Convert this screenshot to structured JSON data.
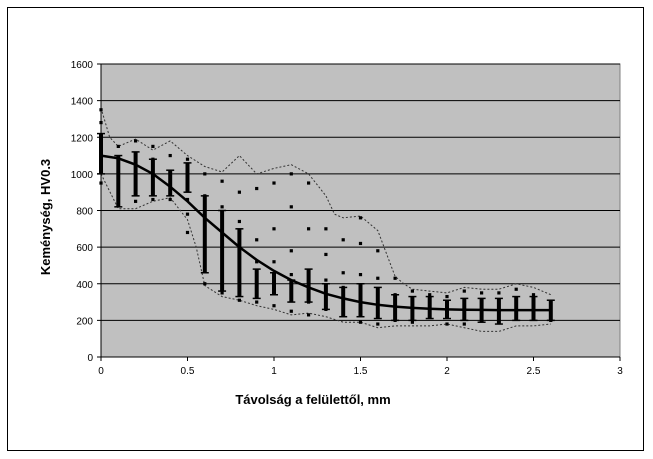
{
  "chart_data": {
    "type": "scatter",
    "title": "",
    "xlabel": "Távolság a felülettől, mm",
    "ylabel": "Keménység, HV0.3",
    "xlim": [
      0,
      3
    ],
    "ylim": [
      0,
      1600
    ],
    "x_ticks": [
      "0",
      "0.5",
      "1",
      "1.5",
      "2",
      "2.5",
      "3"
    ],
    "y_ticks": [
      "0",
      "200",
      "400",
      "600",
      "800",
      "1000",
      "1200",
      "1400",
      "1600"
    ],
    "grid": true,
    "legend": "none",
    "colors": {
      "plot_bg": "#c0c0c0",
      "grid": "#000000",
      "points": "#000000",
      "trend": "#000000",
      "envelope": "#333333"
    },
    "series": [
      {
        "type": "scatter",
        "points": [
          [
            0,
            1350
          ],
          [
            0,
            1280
          ],
          [
            0,
            1200
          ],
          [
            0,
            1120
          ],
          [
            0,
            1050
          ],
          [
            0,
            950
          ],
          [
            0.1,
            1150
          ],
          [
            0.1,
            1050
          ],
          [
            0.1,
            980
          ],
          [
            0.1,
            900
          ],
          [
            0.1,
            830
          ],
          [
            0.2,
            1180
          ],
          [
            0.2,
            1100
          ],
          [
            0.2,
            1020
          ],
          [
            0.2,
            940
          ],
          [
            0.2,
            850
          ],
          [
            0.3,
            1150
          ],
          [
            0.3,
            1080
          ],
          [
            0.3,
            1000
          ],
          [
            0.3,
            920
          ],
          [
            0.3,
            860
          ],
          [
            0.4,
            1100
          ],
          [
            0.4,
            1000
          ],
          [
            0.4,
            920
          ],
          [
            0.4,
            860
          ],
          [
            0.5,
            1080
          ],
          [
            0.5,
            1000
          ],
          [
            0.5,
            930
          ],
          [
            0.5,
            860
          ],
          [
            0.5,
            780
          ],
          [
            0.5,
            680
          ],
          [
            0.6,
            1000
          ],
          [
            0.6,
            880
          ],
          [
            0.6,
            780
          ],
          [
            0.6,
            640
          ],
          [
            0.6,
            520
          ],
          [
            0.6,
            400
          ],
          [
            0.7,
            960
          ],
          [
            0.7,
            820
          ],
          [
            0.7,
            700
          ],
          [
            0.7,
            560
          ],
          [
            0.7,
            430
          ],
          [
            0.7,
            350
          ],
          [
            0.8,
            900
          ],
          [
            0.8,
            740
          ],
          [
            0.8,
            600
          ],
          [
            0.8,
            480
          ],
          [
            0.8,
            380
          ],
          [
            0.8,
            310
          ],
          [
            0.9,
            920
          ],
          [
            0.9,
            640
          ],
          [
            0.9,
            520
          ],
          [
            0.9,
            440
          ],
          [
            0.9,
            370
          ],
          [
            0.9,
            300
          ],
          [
            1.0,
            950
          ],
          [
            1.0,
            700
          ],
          [
            1.0,
            520
          ],
          [
            1.0,
            430
          ],
          [
            1.0,
            380
          ],
          [
            1.0,
            280
          ],
          [
            1.1,
            1000
          ],
          [
            1.1,
            820
          ],
          [
            1.1,
            580
          ],
          [
            1.1,
            450
          ],
          [
            1.1,
            360
          ],
          [
            1.1,
            250
          ],
          [
            1.2,
            950
          ],
          [
            1.2,
            700
          ],
          [
            1.2,
            460
          ],
          [
            1.2,
            380
          ],
          [
            1.2,
            300
          ],
          [
            1.2,
            230
          ],
          [
            1.3,
            700
          ],
          [
            1.3,
            560
          ],
          [
            1.3,
            420
          ],
          [
            1.3,
            340
          ],
          [
            1.3,
            260
          ],
          [
            1.4,
            640
          ],
          [
            1.4,
            460
          ],
          [
            1.4,
            380
          ],
          [
            1.4,
            300
          ],
          [
            1.4,
            230
          ],
          [
            1.5,
            760
          ],
          [
            1.5,
            620
          ],
          [
            1.5,
            450
          ],
          [
            1.5,
            350
          ],
          [
            1.5,
            260
          ],
          [
            1.5,
            190
          ],
          [
            1.6,
            580
          ],
          [
            1.6,
            430
          ],
          [
            1.6,
            330
          ],
          [
            1.6,
            250
          ],
          [
            1.6,
            180
          ],
          [
            1.7,
            430
          ],
          [
            1.7,
            340
          ],
          [
            1.7,
            280
          ],
          [
            1.7,
            200
          ],
          [
            1.8,
            360
          ],
          [
            1.8,
            300
          ],
          [
            1.8,
            250
          ],
          [
            1.8,
            190
          ],
          [
            1.9,
            340
          ],
          [
            1.9,
            280
          ],
          [
            1.9,
            230
          ],
          [
            2.0,
            330
          ],
          [
            2.0,
            280
          ],
          [
            2.0,
            230
          ],
          [
            2.0,
            180
          ],
          [
            2.1,
            360
          ],
          [
            2.1,
            290
          ],
          [
            2.1,
            230
          ],
          [
            2.1,
            180
          ],
          [
            2.2,
            350
          ],
          [
            2.2,
            280
          ],
          [
            2.2,
            210
          ],
          [
            2.3,
            350
          ],
          [
            2.3,
            270
          ],
          [
            2.3,
            200
          ],
          [
            2.4,
            370
          ],
          [
            2.4,
            290
          ],
          [
            2.4,
            220
          ],
          [
            2.5,
            340
          ],
          [
            2.5,
            270
          ],
          [
            2.5,
            210
          ],
          [
            2.6,
            300
          ],
          [
            2.6,
            250
          ],
          [
            2.6,
            200
          ]
        ]
      },
      {
        "type": "errorbar",
        "bars": [
          [
            0.0,
            1000,
            1220
          ],
          [
            0.1,
            820,
            1100
          ],
          [
            0.2,
            880,
            1120
          ],
          [
            0.3,
            880,
            1080
          ],
          [
            0.4,
            880,
            1020
          ],
          [
            0.5,
            900,
            1060
          ],
          [
            0.6,
            460,
            880
          ],
          [
            0.7,
            360,
            800
          ],
          [
            0.8,
            330,
            700
          ],
          [
            0.9,
            320,
            480
          ],
          [
            1.0,
            340,
            460
          ],
          [
            1.1,
            300,
            420
          ],
          [
            1.2,
            300,
            480
          ],
          [
            1.3,
            260,
            400
          ],
          [
            1.4,
            220,
            380
          ],
          [
            1.5,
            220,
            400
          ],
          [
            1.6,
            210,
            380
          ],
          [
            1.7,
            200,
            340
          ],
          [
            1.8,
            200,
            330
          ],
          [
            1.9,
            210,
            330
          ],
          [
            2.0,
            210,
            310
          ],
          [
            2.1,
            200,
            320
          ],
          [
            2.2,
            190,
            320
          ],
          [
            2.3,
            180,
            320
          ],
          [
            2.4,
            200,
            330
          ],
          [
            2.5,
            200,
            330
          ],
          [
            2.6,
            200,
            310
          ]
        ]
      },
      {
        "type": "line",
        "x": [
          0,
          0.1,
          0.2,
          0.3,
          0.4,
          0.5,
          0.6,
          0.7,
          0.8,
          0.9,
          1.0,
          1.1,
          1.2,
          1.3,
          1.4,
          1.5,
          1.6,
          1.7,
          1.8,
          1.9,
          2.0,
          2.1,
          2.2,
          2.3,
          2.4,
          2.5,
          2.6
        ],
        "y": [
          1100,
          1085,
          1050,
          1000,
          930,
          850,
          760,
          680,
          600,
          530,
          470,
          420,
          380,
          345,
          320,
          300,
          285,
          275,
          268,
          263,
          260,
          258,
          257,
          256,
          256,
          256,
          256
        ]
      },
      {
        "type": "envelope-upper",
        "x": [
          0,
          0.05,
          0.1,
          0.2,
          0.3,
          0.4,
          0.5,
          0.6,
          0.7,
          0.8,
          0.9,
          1.0,
          1.1,
          1.2,
          1.3,
          1.35,
          1.4,
          1.5,
          1.6,
          1.7,
          1.75,
          1.8,
          1.9,
          2.0,
          2.1,
          2.2,
          2.3,
          2.4,
          2.5,
          2.6
        ],
        "y": [
          1360,
          1200,
          1150,
          1190,
          1130,
          1180,
          1100,
          1040,
          1010,
          1100,
          1000,
          1030,
          1050,
          1000,
          880,
          780,
          760,
          770,
          690,
          440,
          400,
          370,
          360,
          350,
          380,
          370,
          370,
          400,
          380,
          340
        ]
      },
      {
        "type": "envelope-lower",
        "x": [
          0,
          0.1,
          0.2,
          0.3,
          0.4,
          0.5,
          0.55,
          0.6,
          0.7,
          0.8,
          0.9,
          1.0,
          1.1,
          1.2,
          1.3,
          1.4,
          1.5,
          1.6,
          1.7,
          1.8,
          1.9,
          2.0,
          2.1,
          2.2,
          2.3,
          2.4,
          2.5,
          2.6
        ],
        "y": [
          1000,
          810,
          810,
          850,
          870,
          750,
          600,
          390,
          330,
          310,
          280,
          260,
          230,
          240,
          220,
          190,
          190,
          160,
          170,
          170,
          170,
          180,
          160,
          140,
          140,
          170,
          170,
          180
        ]
      }
    ]
  }
}
